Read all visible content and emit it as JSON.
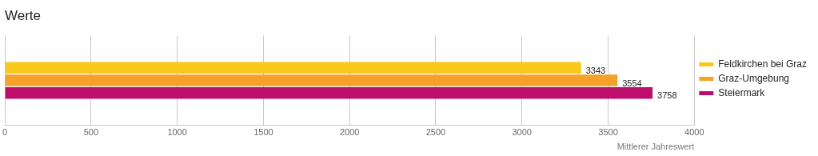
{
  "chart_data": {
    "type": "bar",
    "title": "Werte",
    "orientation": "horizontal",
    "categories": [
      null
    ],
    "series": [
      {
        "name": "Feldkirchen bei Graz",
        "color": "#f8c81c",
        "values": [
          3343
        ]
      },
      {
        "name": "Graz-Umgebung",
        "color": "#f5a12a",
        "values": [
          3554
        ]
      },
      {
        "name": "Steiermark",
        "color": "#be0e6c",
        "values": [
          3758
        ]
      }
    ],
    "x_label": "Mittlerer Jahreswert",
    "xlim": [
      0,
      4000
    ],
    "xticks": [
      0,
      500,
      1000,
      1500,
      2000,
      2500,
      3000,
      3500,
      4000
    ],
    "grid": true,
    "legend": "right",
    "data_labels": true,
    "tick_labels": "x"
  }
}
